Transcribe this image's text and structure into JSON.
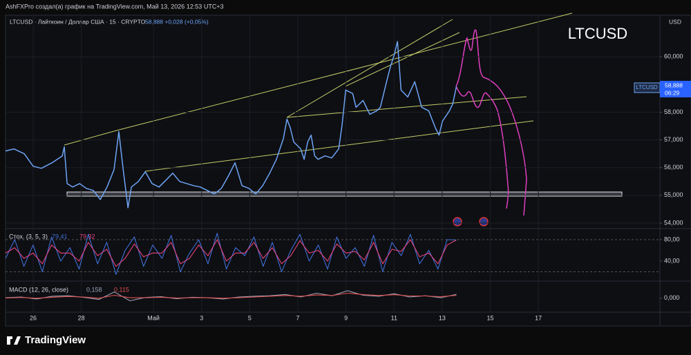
{
  "header": "AshFXPro создал(а) график на TradingView.com, Май 13, 2026 12:53 UTC+3",
  "footer": "TradingView",
  "chart_data": [
    {
      "type": "line",
      "title": "LTCUSD · Лайткоин / Доллар США · 15 · CRYPTO",
      "annotations": {
        "quote": "58,888 +0,028 (+0,05%)",
        "symbol": "LTCUSD",
        "price_label": "58,888",
        "countdown": "06:29",
        "symbol_label": "LTCUSD",
        "currency": "USD"
      },
      "xlim": [
        -1.15,
        26.05
      ],
      "xticks": [
        {
          "value": 0,
          "label": "26"
        },
        {
          "value": 2,
          "label": "28"
        },
        {
          "value": 5,
          "label": "Май"
        },
        {
          "value": 7,
          "label": "3"
        },
        {
          "value": 9,
          "label": "5"
        },
        {
          "value": 11,
          "label": "7"
        },
        {
          "value": 13,
          "label": "9"
        },
        {
          "value": 15,
          "label": "11"
        },
        {
          "value": 17,
          "label": "13"
        },
        {
          "value": 19,
          "label": "15"
        },
        {
          "value": 21,
          "label": "17"
        }
      ],
      "ylim": [
        53825,
        61500
      ],
      "yticks": [
        {
          "value": 54000,
          "label": "54,000"
        },
        {
          "value": 55000,
          "label": "55,000"
        },
        {
          "value": 56000,
          "label": "56,000"
        },
        {
          "value": 57000,
          "label": "57,000"
        },
        {
          "value": 58000,
          "label": "58,000"
        },
        {
          "value": 60000,
          "label": "60,000"
        }
      ],
      "grid": true,
      "x": [
        -1.15,
        -0.8,
        -0.37,
        0,
        0.34,
        0.78,
        1.21,
        1.29,
        1.41,
        1.64,
        1.93,
        2.21,
        2.5,
        2.79,
        3.07,
        3.36,
        3.56,
        3.74,
        3.94,
        4.08,
        4.37,
        4.66,
        4.94,
        5.23,
        5.52,
        5.8,
        6.09,
        6.38,
        6.67,
        6.95,
        7.24,
        7.53,
        7.82,
        8.1,
        8.39,
        8.68,
        8.97,
        9.25,
        9.54,
        9.83,
        10.11,
        10.4,
        10.55,
        10.69,
        10.83,
        11.12,
        11.26,
        11.41,
        11.55,
        11.7,
        11.84,
        12.13,
        12.41,
        12.7,
        12.84,
        12.99,
        13.28,
        13.42,
        13.71,
        13.99,
        14.28,
        14.43,
        14.71,
        14.86,
        15.0,
        15.14,
        15.29,
        15.57,
        15.86,
        16.15,
        16.44,
        16.72,
        16.87,
        17.01,
        17.3,
        17.44,
        17.59
      ],
      "series": [
        {
          "color": "#6ea5f7",
          "values": [
            56600,
            56675,
            56500,
            56050,
            55975,
            56175,
            56425,
            56750,
            55425,
            55300,
            55425,
            55250,
            55175,
            54850,
            55300,
            55925,
            57300,
            55925,
            54550,
            55300,
            55500,
            55850,
            55425,
            55300,
            55550,
            55800,
            55500,
            55425,
            55350,
            55300,
            55175,
            55050,
            55250,
            55675,
            56175,
            55350,
            55250,
            55050,
            55350,
            55800,
            56300,
            57050,
            57750,
            57425,
            56925,
            56675,
            56300,
            56925,
            57175,
            56425,
            56300,
            56425,
            56350,
            56675,
            57550,
            58800,
            58675,
            58175,
            58425,
            57925,
            58050,
            58175,
            59175,
            59675,
            60050,
            60550,
            58800,
            58550,
            59100,
            58175,
            58050,
            57425,
            57175,
            57675,
            58050,
            58300,
            58925
          ]
        }
      ]
    },
    {
      "type": "line",
      "title": "Стох. (3, 5, 3)",
      "ylim": [
        5.16,
        98.06
      ],
      "yticks": [
        {
          "value": 80,
          "label": "80,00"
        },
        {
          "value": 40,
          "label": "40,00"
        }
      ],
      "bands": [
        80,
        20
      ],
      "series": [
        {
          "color": "#3f6fd8",
          "last_label": "79,41",
          "values": [
            45,
            80,
            30,
            70,
            20,
            85,
            40,
            65,
            25,
            90,
            35,
            75,
            15,
            60,
            85,
            30,
            70,
            45,
            88,
            20,
            55,
            80,
            35,
            92,
            25,
            65,
            50,
            85,
            30,
            75,
            20,
            60,
            90,
            40,
            70,
            25,
            85,
            45,
            65,
            30,
            88,
            20,
            75,
            50,
            90,
            35,
            60,
            25,
            80,
            79.41
          ]
        },
        {
          "color": "#e8437a",
          "last_label": "79,32",
          "values": [
            55,
            65,
            45,
            55,
            35,
            70,
            55,
            55,
            40,
            75,
            50,
            62,
            30,
            45,
            72,
            48,
            55,
            55,
            75,
            35,
            45,
            70,
            50,
            80,
            40,
            55,
            55,
            75,
            45,
            65,
            35,
            50,
            78,
            55,
            60,
            40,
            72,
            55,
            58,
            42,
            75,
            35,
            62,
            58,
            80,
            48,
            55,
            35,
            70,
            79.32
          ]
        }
      ]
    },
    {
      "type": "line",
      "title": "MACD (12, 26, close)",
      "ylim": [
        -0.5,
        0.6
      ],
      "yticks": [
        {
          "value": 0,
          "label": "0,000"
        }
      ],
      "series": [
        {
          "color": "#9aa3b5",
          "last_label": "0,158",
          "values": [
            0.02,
            0.05,
            -0.03,
            0.08,
            0.1,
            0.04,
            -0.05,
            0.25,
            -0.1,
            0.03,
            0.06,
            -0.02,
            0.04,
            0.02,
            -0.03,
            0.05,
            0.08,
            0.1,
            0.15,
            0.05,
            0.2,
            0.1,
            0.3,
            0.12,
            0.08,
            0.18,
            0.05,
            0.1,
            0.02,
            0.158
          ]
        },
        {
          "color": "#e05050",
          "last_label": "0,115",
          "values": [
            0.01,
            0.03,
            0.0,
            0.04,
            0.07,
            0.05,
            0.0,
            0.12,
            0.02,
            0.02,
            0.04,
            0.01,
            0.02,
            0.02,
            0.0,
            0.02,
            0.05,
            0.08,
            0.11,
            0.08,
            0.13,
            0.11,
            0.2,
            0.15,
            0.11,
            0.14,
            0.09,
            0.09,
            0.06,
            0.115
          ]
        }
      ]
    }
  ]
}
